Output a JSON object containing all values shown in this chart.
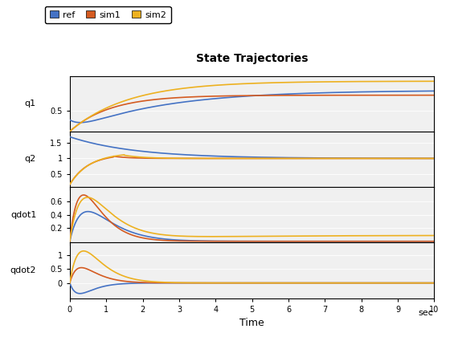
{
  "title": "State Trajectories",
  "xlabel": "Time",
  "xlabel_right": "sec",
  "legend_labels": [
    "ref",
    "sim1",
    "sim2"
  ],
  "colors": {
    "ref": "#4472C4",
    "sim1": "#D45B21",
    "sim2": "#EDB120"
  },
  "subplot_labels": [
    "q1",
    "q2",
    "qdot1",
    "qdot2"
  ],
  "t_end": 10.0,
  "xticks": [
    0,
    1,
    2,
    3,
    4,
    5,
    6,
    7,
    8,
    9,
    10
  ],
  "bg_color": "#F0F0F0",
  "face_color": "#FFFFFF",
  "q1": {
    "ytick_vals": [
      0.5
    ],
    "ytick_labels": [
      "0.5"
    ],
    "ylim": [
      0.0,
      1.35
    ]
  },
  "q2": {
    "ytick_vals": [
      0.5,
      1.0,
      1.5
    ],
    "ytick_labels": [
      "0.5",
      "1",
      "1.5"
    ],
    "ylim": [
      0.1,
      1.85
    ]
  },
  "qdot1": {
    "ytick_vals": [
      0.2,
      0.4,
      0.6
    ],
    "ytick_labels": [
      "0.2",
      "0.4",
      "0.6"
    ],
    "ylim": [
      -0.02,
      0.82
    ]
  },
  "qdot2": {
    "ytick_vals": [
      0.0,
      0.5,
      1.0
    ],
    "ytick_labels": [
      "0",
      "0.5",
      "1"
    ],
    "ylim": [
      -0.55,
      1.45
    ]
  }
}
